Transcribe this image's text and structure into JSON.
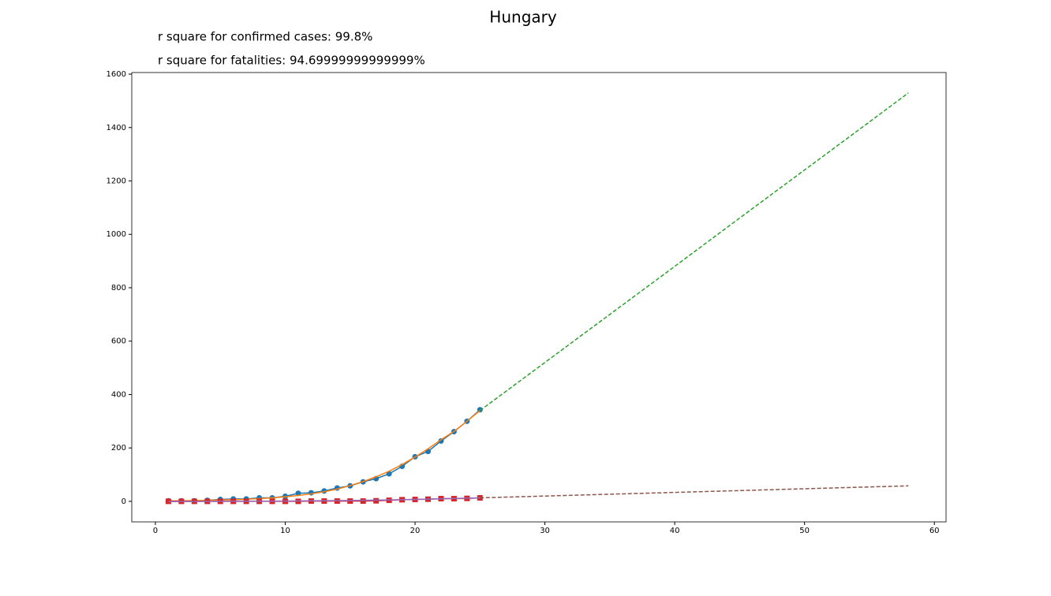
{
  "chart_data": {
    "type": "line",
    "title": "Hungary",
    "annotations": [
      "r square for confirmed cases: 99.8%",
      "r square for fatalities: 94.69999999999999%"
    ],
    "xlim": [
      -1.82,
      60.9
    ],
    "xticks": [
      0,
      10,
      20,
      30,
      40,
      50,
      60
    ],
    "ylim": [
      -77,
      1606
    ],
    "yticks": [
      0,
      200,
      400,
      600,
      800,
      1000,
      1200,
      1400,
      1600
    ],
    "grid": false,
    "series": [
      {
        "color": "#1f77b4",
        "marker": "circle",
        "linestyle": "solid",
        "x": [
          1,
          2,
          3,
          4,
          5,
          6,
          7,
          8,
          9,
          10,
          11,
          12,
          13,
          14,
          15,
          16,
          17,
          18,
          19,
          20,
          21,
          22,
          23,
          24,
          25
        ],
        "values": [
          2,
          2,
          2,
          4,
          7,
          9,
          9,
          13,
          13,
          19,
          30,
          32,
          39,
          50,
          58,
          73,
          85,
          103,
          131,
          167,
          187,
          226,
          261,
          300,
          343
        ]
      },
      {
        "color": "#ff7f0e",
        "marker": "none",
        "linestyle": "solid",
        "x": [
          1,
          2,
          3,
          4,
          5,
          6,
          7,
          8,
          9,
          10,
          11,
          12,
          13,
          14,
          15,
          16,
          17,
          18,
          19,
          20,
          21,
          22,
          23,
          24,
          25
        ],
        "values": [
          2,
          2,
          3,
          4,
          5,
          6,
          8,
          10,
          13,
          17,
          22,
          28,
          36,
          46,
          59,
          74,
          92,
          113,
          138,
          166,
          197,
          231,
          262,
          300,
          340
        ]
      },
      {
        "color": "#2ca02c",
        "marker": "none",
        "linestyle": "dashed",
        "x": [
          25,
          30,
          35,
          40,
          45,
          50,
          55,
          58
        ],
        "values": [
          340,
          520,
          700,
          880,
          1061,
          1241,
          1421,
          1530
        ]
      },
      {
        "color": "#d62728",
        "marker": "square",
        "linestyle": "solid",
        "x": [
          1,
          2,
          3,
          4,
          5,
          6,
          7,
          8,
          9,
          10,
          11,
          12,
          13,
          14,
          15,
          16,
          17,
          18,
          19,
          20,
          21,
          22,
          23,
          24,
          25
        ],
        "values": [
          0,
          0,
          0,
          0,
          0,
          0,
          0,
          0,
          0,
          0,
          0,
          1,
          1,
          1,
          1,
          1,
          2,
          4,
          6,
          7,
          8,
          10,
          10,
          11,
          13
        ]
      },
      {
        "color": "#9467bd",
        "marker": "none",
        "linestyle": "solid",
        "x": [
          1,
          5,
          10,
          15,
          20,
          25
        ],
        "values": [
          -1,
          0,
          1,
          3,
          7,
          13
        ]
      },
      {
        "color": "#8c564b",
        "marker": "none",
        "linestyle": "dashed",
        "x": [
          25,
          58
        ],
        "values": [
          13,
          58
        ]
      }
    ]
  }
}
